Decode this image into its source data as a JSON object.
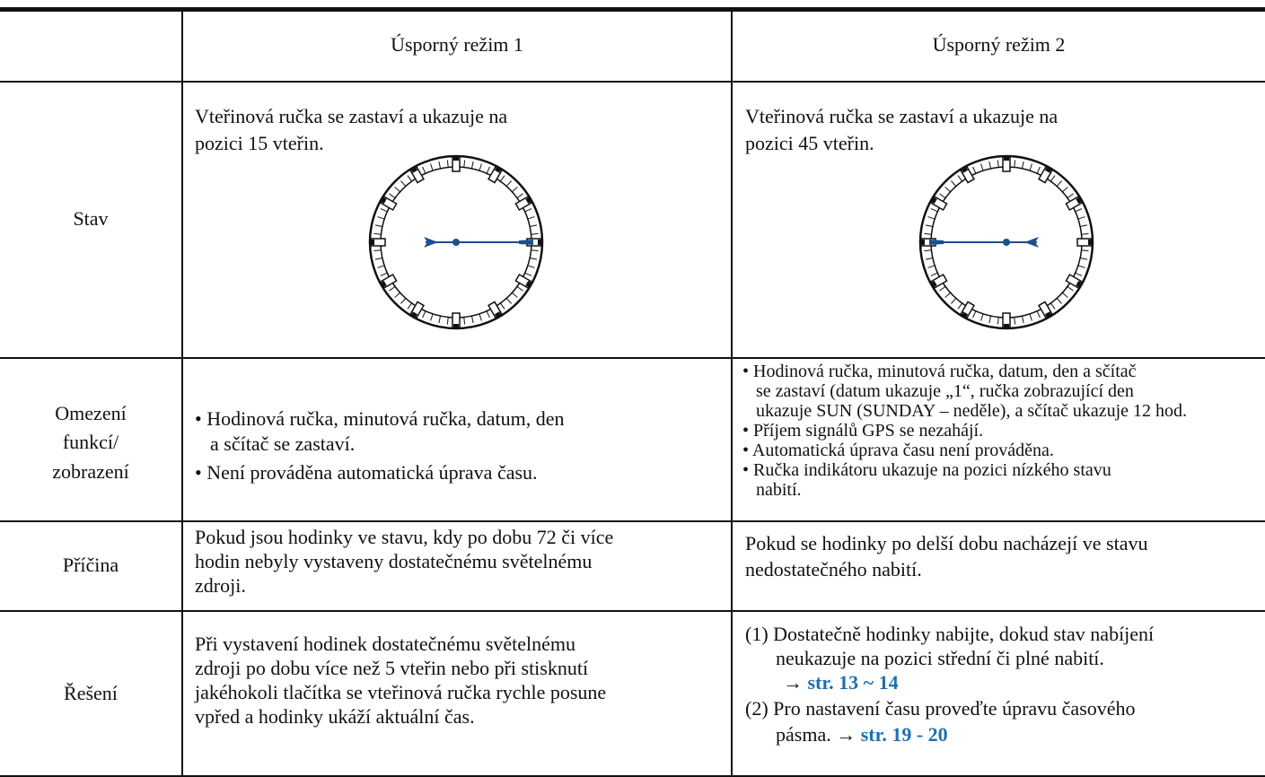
{
  "table": {
    "header": [
      "Úsporný režim 1",
      "Úsporný režim 2"
    ],
    "rows": [
      {
        "label": [
          "Stav"
        ],
        "cells": [
          [
            "Vteřinová ručka se zastaví a ukazuje na",
            "pozici 15 vteřin."
          ],
          [
            "Vteřinová ručka se zastaví a ukazuje na",
            "pozici 45 vteřin."
          ]
        ]
      },
      {
        "label": [
          "Omezení",
          "funkcí/",
          "zobrazení"
        ],
        "cells": [
          [
            "• Hodinová ručka, minutová ručka, datum, den",
            "a sčítač se zastaví.",
            "• Není prováděna automatická úprava času."
          ],
          [
            "• Hodinová ručka, minutová ručka, datum, den a sčítač",
            "se zastaví (datum ukazuje „1“, ručka zobrazující den",
            "ukazuje SUN (SUNDAY – neděle), a sčítač ukazuje 12 hod.",
            "• Příjem signálů GPS se nezahájí.",
            "• Automatická úprava času není prováděna.",
            "• Ručka indikátoru ukazuje na pozici nízkého stavu",
            "nabití."
          ]
        ]
      },
      {
        "label": [
          "Příčina"
        ],
        "cells": [
          [
            "Pokud jsou hodinky ve stavu, kdy po dobu 72 či více",
            "hodin nebyly vystaveny dostatečnému světelnému",
            "zdroji."
          ],
          [
            "Pokud se hodinky po delší dobu nacházejí ve stavu",
            "nedostatečného  nabití."
          ]
        ]
      },
      {
        "label": [
          "Řešení"
        ],
        "cells": [
          [
            "Při vystavení hodinek dostatečnému světelnému",
            "zdroji po dobu více než 5 vteřin nebo při stisknutí",
            "jakéhokoli tlačítka se vteřinová ručka rychle posune",
            "vpřed a hodinky ukáží aktuální čas."
          ],
          [
            "(1) Dostatečně hodinky nabijte, dokud stav nabíjení",
            "neukazuje na pozici střední či plné nabití.",
            "→ ",
            "str. 13 ~ 14",
            "(2)  Pro nastavení času proveďte úpravu časového",
            "pásma. → ",
            "str. 19 - 20"
          ]
        ]
      }
    ]
  }
}
